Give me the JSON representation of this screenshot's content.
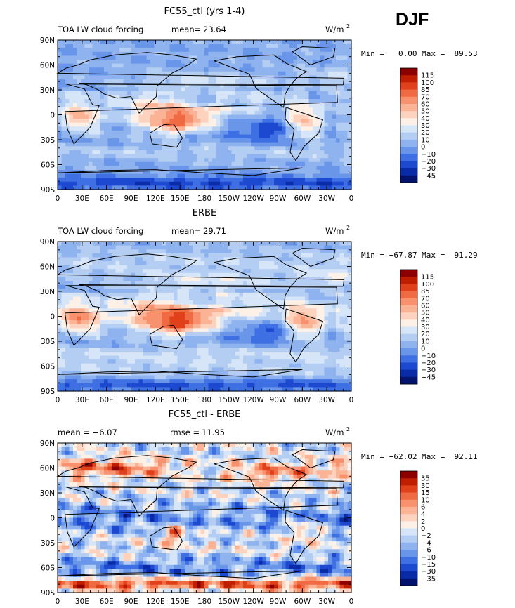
{
  "season": "DJF",
  "chart_data": [
    {
      "type": "heatmap",
      "title": "FC55_ctl (yrs 1-4)",
      "left_label": "TOA LW cloud forcing",
      "stat_label": "mean=",
      "stat_value": "23.64",
      "units_text": "W/m",
      "units_exp": "2",
      "min_text": "Min =   0.00 Max =  89.53",
      "colorbar": [
        "115",
        "100",
        "85",
        "70",
        "60",
        "50",
        "40",
        "30",
        "20",
        "10",
        "0",
        "−10",
        "−20",
        "−30",
        "−45"
      ],
      "colors": [
        "#8c0000",
        "#bf1e00",
        "#e0401a",
        "#f06a44",
        "#f8926e",
        "#fbb395",
        "#fdd3bf",
        "#fdf0e6",
        "#d6e6f8",
        "#b3cdf3",
        "#8fb3ef",
        "#6a96ea",
        "#3f70e3",
        "#1d48d0",
        "#0a2ba8",
        "#03136d"
      ],
      "field": "ctl"
    },
    {
      "type": "heatmap",
      "title": "ERBE",
      "left_label": "TOA LW cloud forcing",
      "stat_label": "mean=",
      "stat_value": "29.71",
      "units_text": "W/m",
      "units_exp": "2",
      "min_text": "Min = −67.87 Max =  91.29",
      "colorbar": [
        "115",
        "100",
        "85",
        "70",
        "60",
        "50",
        "40",
        "30",
        "20",
        "10",
        "0",
        "−10",
        "−20",
        "−30",
        "−45"
      ],
      "colors": [
        "#8c0000",
        "#bf1e00",
        "#e0401a",
        "#f06a44",
        "#f8926e",
        "#fbb395",
        "#fdd3bf",
        "#fdf0e6",
        "#d6e6f8",
        "#b3cdf3",
        "#8fb3ef",
        "#6a96ea",
        "#3f70e3",
        "#1d48d0",
        "#0a2ba8",
        "#03136d"
      ],
      "field": "erbe"
    },
    {
      "type": "heatmap",
      "title": "FC55_ctl - ERBE",
      "left_label": "mean =   −6.07",
      "stat_label": "rmse =",
      "stat_value": "11.95",
      "units_text": "W/m",
      "units_exp": "2",
      "min_text": "Min = −62.02 Max =  92.11",
      "colorbar": [
        "35",
        "30",
        "15",
        "10",
        "6",
        "4",
        "2",
        "0",
        "−2",
        "−4",
        "−6",
        "−10",
        "−15",
        "−30",
        "−35"
      ],
      "colors": [
        "#8c0000",
        "#bf1e00",
        "#e0401a",
        "#f06a44",
        "#f8926e",
        "#fbb395",
        "#fdd3bf",
        "#fdf0e6",
        "#d6e6f8",
        "#b3cdf3",
        "#8fb3ef",
        "#6a96ea",
        "#3f70e3",
        "#1d48d0",
        "#0a2ba8",
        "#03136d"
      ],
      "field": "diff"
    }
  ],
  "lat_ticks": [
    "90N",
    "60N",
    "30N",
    "0",
    "30S",
    "60S",
    "90S"
  ],
  "lon_ticks": [
    "0",
    "30E",
    "60E",
    "90E",
    "120E",
    "150E",
    "180",
    "150W",
    "120W",
    "90W",
    "60W",
    "30W",
    "0"
  ]
}
